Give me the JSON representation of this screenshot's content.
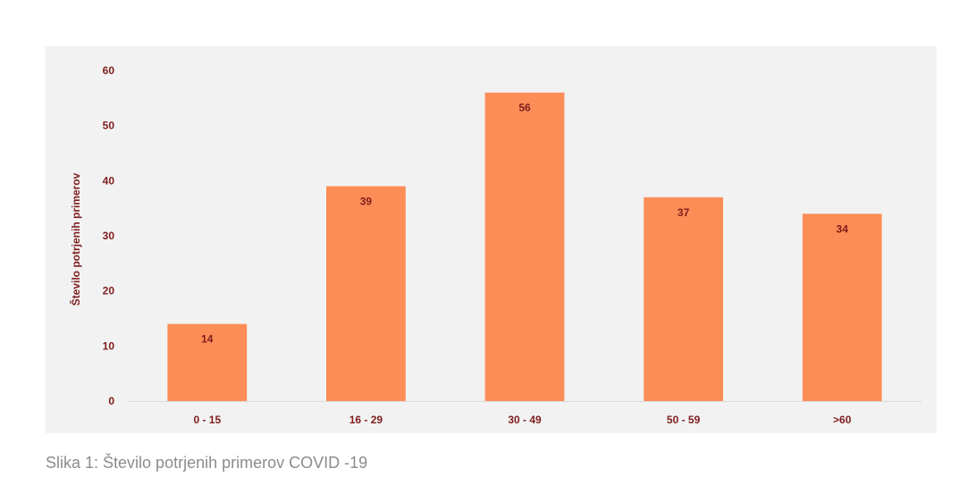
{
  "caption": "Slika 1: Število potrjenih primerov COVID -19",
  "colors": {
    "bar": "#fd8d57",
    "text": "#7f1d1d",
    "panel": "#f2f2f2",
    "axis": "#d9d9d9"
  },
  "chart_data": {
    "type": "bar",
    "title": "",
    "xlabel": "",
    "ylabel": "Število potrjenih primerov",
    "categories": [
      "0 - 15",
      "16 - 29",
      "30 - 49",
      "50 - 59",
      ">60"
    ],
    "values": [
      14,
      39,
      56,
      37,
      34
    ],
    "ylim": [
      0,
      60
    ],
    "yticks": [
      0,
      10,
      20,
      30,
      40,
      50,
      60
    ],
    "grid": false,
    "legend": "none",
    "data_labels": true
  }
}
